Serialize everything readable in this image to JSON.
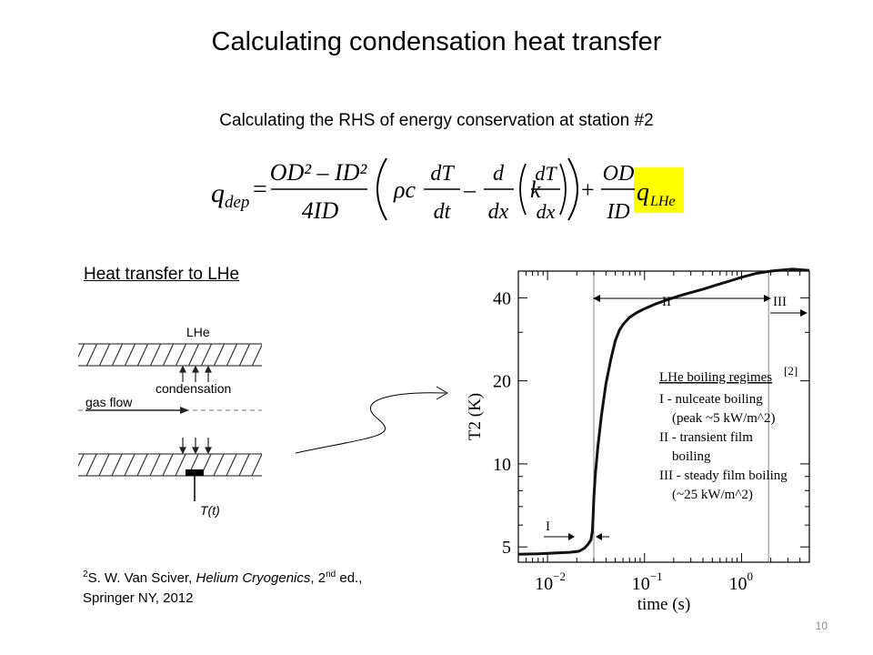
{
  "slide": {
    "title": "Calculating condensation heat transfer",
    "subtitle": "Calculating the RHS of energy conservation at station #2",
    "equation": {
      "lhs": "q",
      "lhs_sub": "dep",
      "frac1_num": "OD² – ID²",
      "frac1_den": "4ID",
      "rho_c": "ρc",
      "dT": "dT",
      "dt": "dt",
      "d": "d",
      "dx": "dx",
      "k": "k",
      "frac2_num": "OD",
      "frac2_den": "ID",
      "highlight": "q",
      "highlight_sub": "LHe",
      "highlight_color": "#ffff00"
    },
    "section_heading": "Heat transfer to LHe",
    "diagram": {
      "top_label": "LHe",
      "condensation_label": "condensation",
      "flow_label": "gas flow",
      "sensor_label": "T(t)"
    },
    "citation": {
      "ref_num": "2",
      "authors": "S. W. Van Sciver, ",
      "book": "Helium Cryogenics",
      "edition_num": ", 2",
      "edition_sup": "nd",
      "edition_rest": " ed.,",
      "line2": "Springer NY, 2012"
    },
    "page_number": "10"
  },
  "chart_data": {
    "type": "line",
    "x_scale": "log",
    "y_scale": "log",
    "xlabel": "time (s)",
    "ylabel": "T2 (K)",
    "xlim": [
      0.005,
      5
    ],
    "ylim": [
      4.4,
      50
    ],
    "x_ticks": [
      0.01,
      0.1,
      1
    ],
    "x_tick_labels": [
      {
        "base": "10",
        "exp": "−2"
      },
      {
        "base": "10",
        "exp": "−1"
      },
      {
        "base": "10",
        "exp": "0"
      }
    ],
    "y_ticks": [
      5,
      10,
      20,
      40
    ],
    "y_tick_labels": [
      "5",
      "10",
      "20",
      "40"
    ],
    "grid": false,
    "series": [
      {
        "x": [
          0.005,
          0.008,
          0.012,
          0.017,
          0.021,
          0.024,
          0.026,
          0.028,
          0.029,
          0.0295,
          0.03,
          0.031,
          0.033,
          0.036,
          0.04,
          0.045,
          0.05,
          0.055,
          0.06,
          0.07,
          0.085,
          0.1,
          0.13,
          0.17,
          0.22,
          0.3,
          0.4,
          0.55,
          0.75,
          1.0,
          1.4,
          2.0,
          2.7,
          3.3,
          3.8,
          4.3,
          5.0
        ],
        "y": [
          4.7,
          4.72,
          4.75,
          4.78,
          4.82,
          4.95,
          5.1,
          5.3,
          5.7,
          6.4,
          7.5,
          9.0,
          11.5,
          15.0,
          19.5,
          24.0,
          28.0,
          30.5,
          32.0,
          34.0,
          35.5,
          36.5,
          38.0,
          39.3,
          40.5,
          41.8,
          43.0,
          44.5,
          46.0,
          47.5,
          49.0,
          50.0,
          50.5,
          50.8,
          50.7,
          50.5,
          50.3
        ]
      }
    ],
    "regime_lines_x": [
      0.03,
      1.9
    ],
    "annotations": {
      "regime_1": "I",
      "regime_2": "II",
      "regime_3": "III",
      "ref_tag": "[2]",
      "legend_title": "LHe boiling regimes",
      "legend_lines": [
        "I - nulceate boiling",
        "(peak ~5 kW/m^2)",
        "II - transient film",
        "boiling",
        "III - steady film boiling",
        "(~25 kW/m^2)"
      ]
    }
  }
}
